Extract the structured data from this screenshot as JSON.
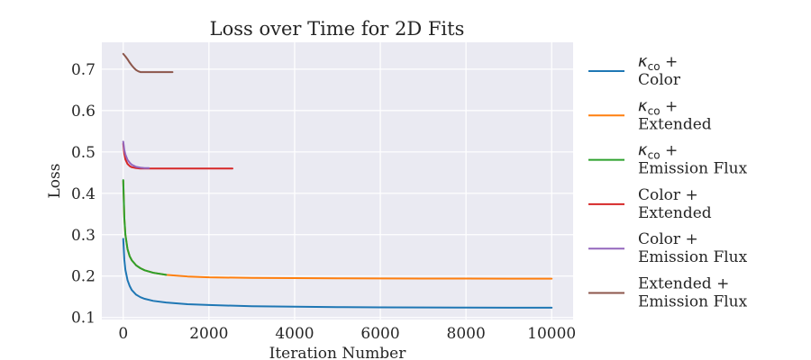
{
  "chart_data": {
    "type": "line",
    "title": "Loss over Time for 2D Fits",
    "xlabel": "Iteration Number",
    "ylabel": "Loss",
    "xlim": [
      -500,
      10500
    ],
    "ylim": [
      0.095,
      0.765
    ],
    "xticks": [
      0,
      2000,
      4000,
      6000,
      8000,
      10000
    ],
    "yticks": [
      0.1,
      0.2,
      0.3,
      0.4,
      0.5,
      0.6,
      0.7
    ],
    "xtick_labels": [
      "0",
      "2000",
      "4000",
      "6000",
      "8000",
      "10000"
    ],
    "ytick_labels": [
      "0.1",
      "0.2",
      "0.3",
      "0.4",
      "0.5",
      "0.6",
      "0.7"
    ],
    "grid": true,
    "legend_placement": "outside-right",
    "series": [
      {
        "name": "κco + Color",
        "legend_lines": [
          {
            "kappa": "κ",
            "sub": "co",
            "rest": " +"
          },
          {
            "text": "Color"
          }
        ],
        "color": "#1f77b4",
        "x": [
          0,
          25,
          50,
          100,
          150,
          200,
          300,
          400,
          500,
          700,
          1000,
          1500,
          2000,
          3000,
          4000,
          5000,
          6000,
          7000,
          8000,
          9000,
          10000
        ],
        "y": [
          0.29,
          0.24,
          0.215,
          0.19,
          0.176,
          0.166,
          0.155,
          0.149,
          0.145,
          0.14,
          0.136,
          0.132,
          0.13,
          0.127,
          0.126,
          0.125,
          0.1245,
          0.124,
          0.1238,
          0.1236,
          0.1235
        ]
      },
      {
        "name": "κco + Extended",
        "legend_lines": [
          {
            "kappa": "κ",
            "sub": "co",
            "rest": " +"
          },
          {
            "text": "Extended"
          }
        ],
        "color": "#ff7f0e",
        "x": [
          0,
          25,
          50,
          100,
          150,
          200,
          300,
          400,
          500,
          700,
          1000,
          1500,
          2000,
          3000,
          4000,
          5000,
          6000,
          7000,
          8000,
          9000,
          10000
        ],
        "y": [
          0.43,
          0.34,
          0.3,
          0.265,
          0.248,
          0.238,
          0.226,
          0.219,
          0.214,
          0.208,
          0.203,
          0.199,
          0.197,
          0.1955,
          0.195,
          0.1945,
          0.1942,
          0.194,
          0.194,
          0.1938,
          0.1937
        ]
      },
      {
        "name": "κco + Emission Flux",
        "legend_lines": [
          {
            "kappa": "κ",
            "sub": "co",
            "rest": " +"
          },
          {
            "text": "Emission Flux"
          }
        ],
        "color": "#2ca02c",
        "x": [
          0,
          25,
          50,
          100,
          150,
          200,
          300,
          400,
          500,
          700,
          1000
        ],
        "y": [
          0.432,
          0.34,
          0.3,
          0.265,
          0.248,
          0.238,
          0.226,
          0.219,
          0.214,
          0.208,
          0.203
        ]
      },
      {
        "name": "Color + Extended",
        "legend_lines": [
          {
            "text": "Color +"
          },
          {
            "text": "Extended"
          }
        ],
        "color": "#d62728",
        "x": [
          0,
          25,
          50,
          100,
          150,
          200,
          300,
          400,
          600,
          1000,
          1500,
          2000,
          2550
        ],
        "y": [
          0.52,
          0.495,
          0.482,
          0.471,
          0.466,
          0.463,
          0.461,
          0.46,
          0.46,
          0.46,
          0.46,
          0.46,
          0.46
        ]
      },
      {
        "name": "Color + Emission Flux",
        "legend_lines": [
          {
            "text": "Color +"
          },
          {
            "text": "Emission Flux"
          }
        ],
        "color": "#9467bd",
        "x": [
          0,
          25,
          50,
          100,
          150,
          200,
          300,
          400,
          500,
          600
        ],
        "y": [
          0.525,
          0.505,
          0.494,
          0.481,
          0.474,
          0.469,
          0.464,
          0.462,
          0.461,
          0.461
        ]
      },
      {
        "name": "Extended + Emission Flux",
        "legend_lines": [
          {
            "text": "Extended +"
          },
          {
            "text": "Emission Flux"
          }
        ],
        "color": "#8c564b",
        "x": [
          0,
          50,
          100,
          150,
          200,
          250,
          300,
          350,
          400,
          500,
          700,
          900,
          1150
        ],
        "y": [
          0.737,
          0.731,
          0.724,
          0.716,
          0.709,
          0.703,
          0.698,
          0.695,
          0.693,
          0.693,
          0.693,
          0.693,
          0.693
        ]
      }
    ]
  }
}
